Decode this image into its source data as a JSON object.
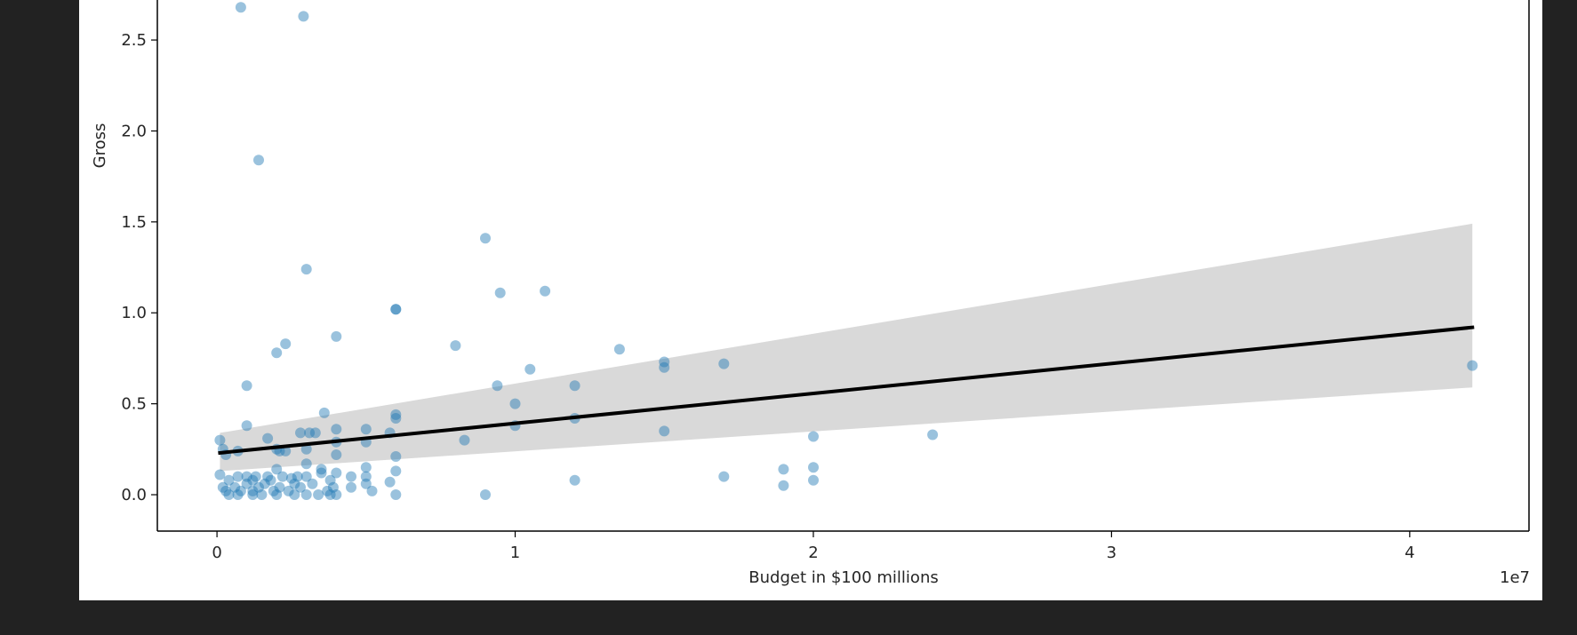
{
  "chart_data": {
    "type": "scatter",
    "title": "",
    "xlabel": "Budget in $100 millions",
    "ylabel": "Gross",
    "x_offset_text": "1e7",
    "xlim": [
      -0.2,
      4.4
    ],
    "ylim": [
      -0.2,
      2.72
    ],
    "x_ticks": [
      0,
      1,
      2,
      3,
      4
    ],
    "x_tick_labels": [
      "0",
      "1",
      "2",
      "3",
      "4"
    ],
    "y_ticks": [
      0.0,
      0.5,
      1.0,
      1.5,
      2.0,
      2.5
    ],
    "y_tick_labels": [
      "0.0",
      "0.5",
      "1.0",
      "1.5",
      "2.0",
      "2.5"
    ],
    "grid": false,
    "point_color": "#1f77b4",
    "line_color": "#000000",
    "band_color": "#d9d9d9",
    "points": [
      [
        0.08,
        2.68
      ],
      [
        0.29,
        2.63
      ],
      [
        0.14,
        1.84
      ],
      [
        0.9,
        1.41
      ],
      [
        0.3,
        1.24
      ],
      [
        0.95,
        1.11
      ],
      [
        1.1,
        1.12
      ],
      [
        0.6,
        1.02
      ],
      [
        0.6,
        1.02
      ],
      [
        0.4,
        0.87
      ],
      [
        0.23,
        0.83
      ],
      [
        0.2,
        0.78
      ],
      [
        0.8,
        0.82
      ],
      [
        1.35,
        0.8
      ],
      [
        1.5,
        0.73
      ],
      [
        1.5,
        0.7
      ],
      [
        1.7,
        0.72
      ],
      [
        4.21,
        0.71
      ],
      [
        1.05,
        0.69
      ],
      [
        0.1,
        0.6
      ],
      [
        0.94,
        0.6
      ],
      [
        1.2,
        0.6
      ],
      [
        1.0,
        0.5
      ],
      [
        0.36,
        0.45
      ],
      [
        0.6,
        0.44
      ],
      [
        0.6,
        0.42
      ],
      [
        1.2,
        0.42
      ],
      [
        0.1,
        0.38
      ],
      [
        1.0,
        0.38
      ],
      [
        0.4,
        0.36
      ],
      [
        0.5,
        0.36
      ],
      [
        1.5,
        0.35
      ],
      [
        0.28,
        0.34
      ],
      [
        0.31,
        0.34
      ],
      [
        0.33,
        0.34
      ],
      [
        0.58,
        0.34
      ],
      [
        2.4,
        0.33
      ],
      [
        2.0,
        0.32
      ],
      [
        0.17,
        0.31
      ],
      [
        0.83,
        0.3
      ],
      [
        0.01,
        0.3
      ],
      [
        0.4,
        0.29
      ],
      [
        0.5,
        0.29
      ],
      [
        0.02,
        0.25
      ],
      [
        0.07,
        0.24
      ],
      [
        0.2,
        0.25
      ],
      [
        0.21,
        0.24
      ],
      [
        0.23,
        0.24
      ],
      [
        0.3,
        0.25
      ],
      [
        0.03,
        0.22
      ],
      [
        0.4,
        0.22
      ],
      [
        0.6,
        0.21
      ],
      [
        0.3,
        0.17
      ],
      [
        0.5,
        0.15
      ],
      [
        1.9,
        0.14
      ],
      [
        2.0,
        0.15
      ],
      [
        0.2,
        0.14
      ],
      [
        0.35,
        0.14
      ],
      [
        0.6,
        0.13
      ],
      [
        0.35,
        0.12
      ],
      [
        0.4,
        0.12
      ],
      [
        0.01,
        0.11
      ],
      [
        0.07,
        0.1
      ],
      [
        0.1,
        0.1
      ],
      [
        0.13,
        0.1
      ],
      [
        0.17,
        0.1
      ],
      [
        0.22,
        0.1
      ],
      [
        0.27,
        0.1
      ],
      [
        0.3,
        0.1
      ],
      [
        0.45,
        0.1
      ],
      [
        0.5,
        0.1
      ],
      [
        1.7,
        0.1
      ],
      [
        0.04,
        0.08
      ],
      [
        0.12,
        0.08
      ],
      [
        0.18,
        0.08
      ],
      [
        0.25,
        0.09
      ],
      [
        0.38,
        0.08
      ],
      [
        1.2,
        0.08
      ],
      [
        2.0,
        0.08
      ],
      [
        0.58,
        0.07
      ],
      [
        0.1,
        0.06
      ],
      [
        0.16,
        0.06
      ],
      [
        0.26,
        0.06
      ],
      [
        0.32,
        0.06
      ],
      [
        0.5,
        0.06
      ],
      [
        1.9,
        0.05
      ],
      [
        0.02,
        0.04
      ],
      [
        0.06,
        0.04
      ],
      [
        0.14,
        0.04
      ],
      [
        0.21,
        0.04
      ],
      [
        0.28,
        0.04
      ],
      [
        0.39,
        0.04
      ],
      [
        0.45,
        0.04
      ],
      [
        0.03,
        0.02
      ],
      [
        0.08,
        0.02
      ],
      [
        0.12,
        0.02
      ],
      [
        0.19,
        0.02
      ],
      [
        0.24,
        0.02
      ],
      [
        0.37,
        0.02
      ],
      [
        0.52,
        0.02
      ],
      [
        0.04,
        0.0
      ],
      [
        0.07,
        0.0
      ],
      [
        0.12,
        0.0
      ],
      [
        0.15,
        0.0
      ],
      [
        0.2,
        0.0
      ],
      [
        0.26,
        0.0
      ],
      [
        0.3,
        0.0
      ],
      [
        0.34,
        0.0
      ],
      [
        0.38,
        0.0
      ],
      [
        0.4,
        0.0
      ],
      [
        0.6,
        0.0
      ],
      [
        0.9,
        0.0
      ]
    ],
    "regression": {
      "x": [
        0.01,
        4.21
      ],
      "y": [
        0.23,
        0.92
      ],
      "ci_upper": [
        0.34,
        1.49
      ],
      "ci_lower": [
        0.13,
        0.59
      ]
    }
  }
}
